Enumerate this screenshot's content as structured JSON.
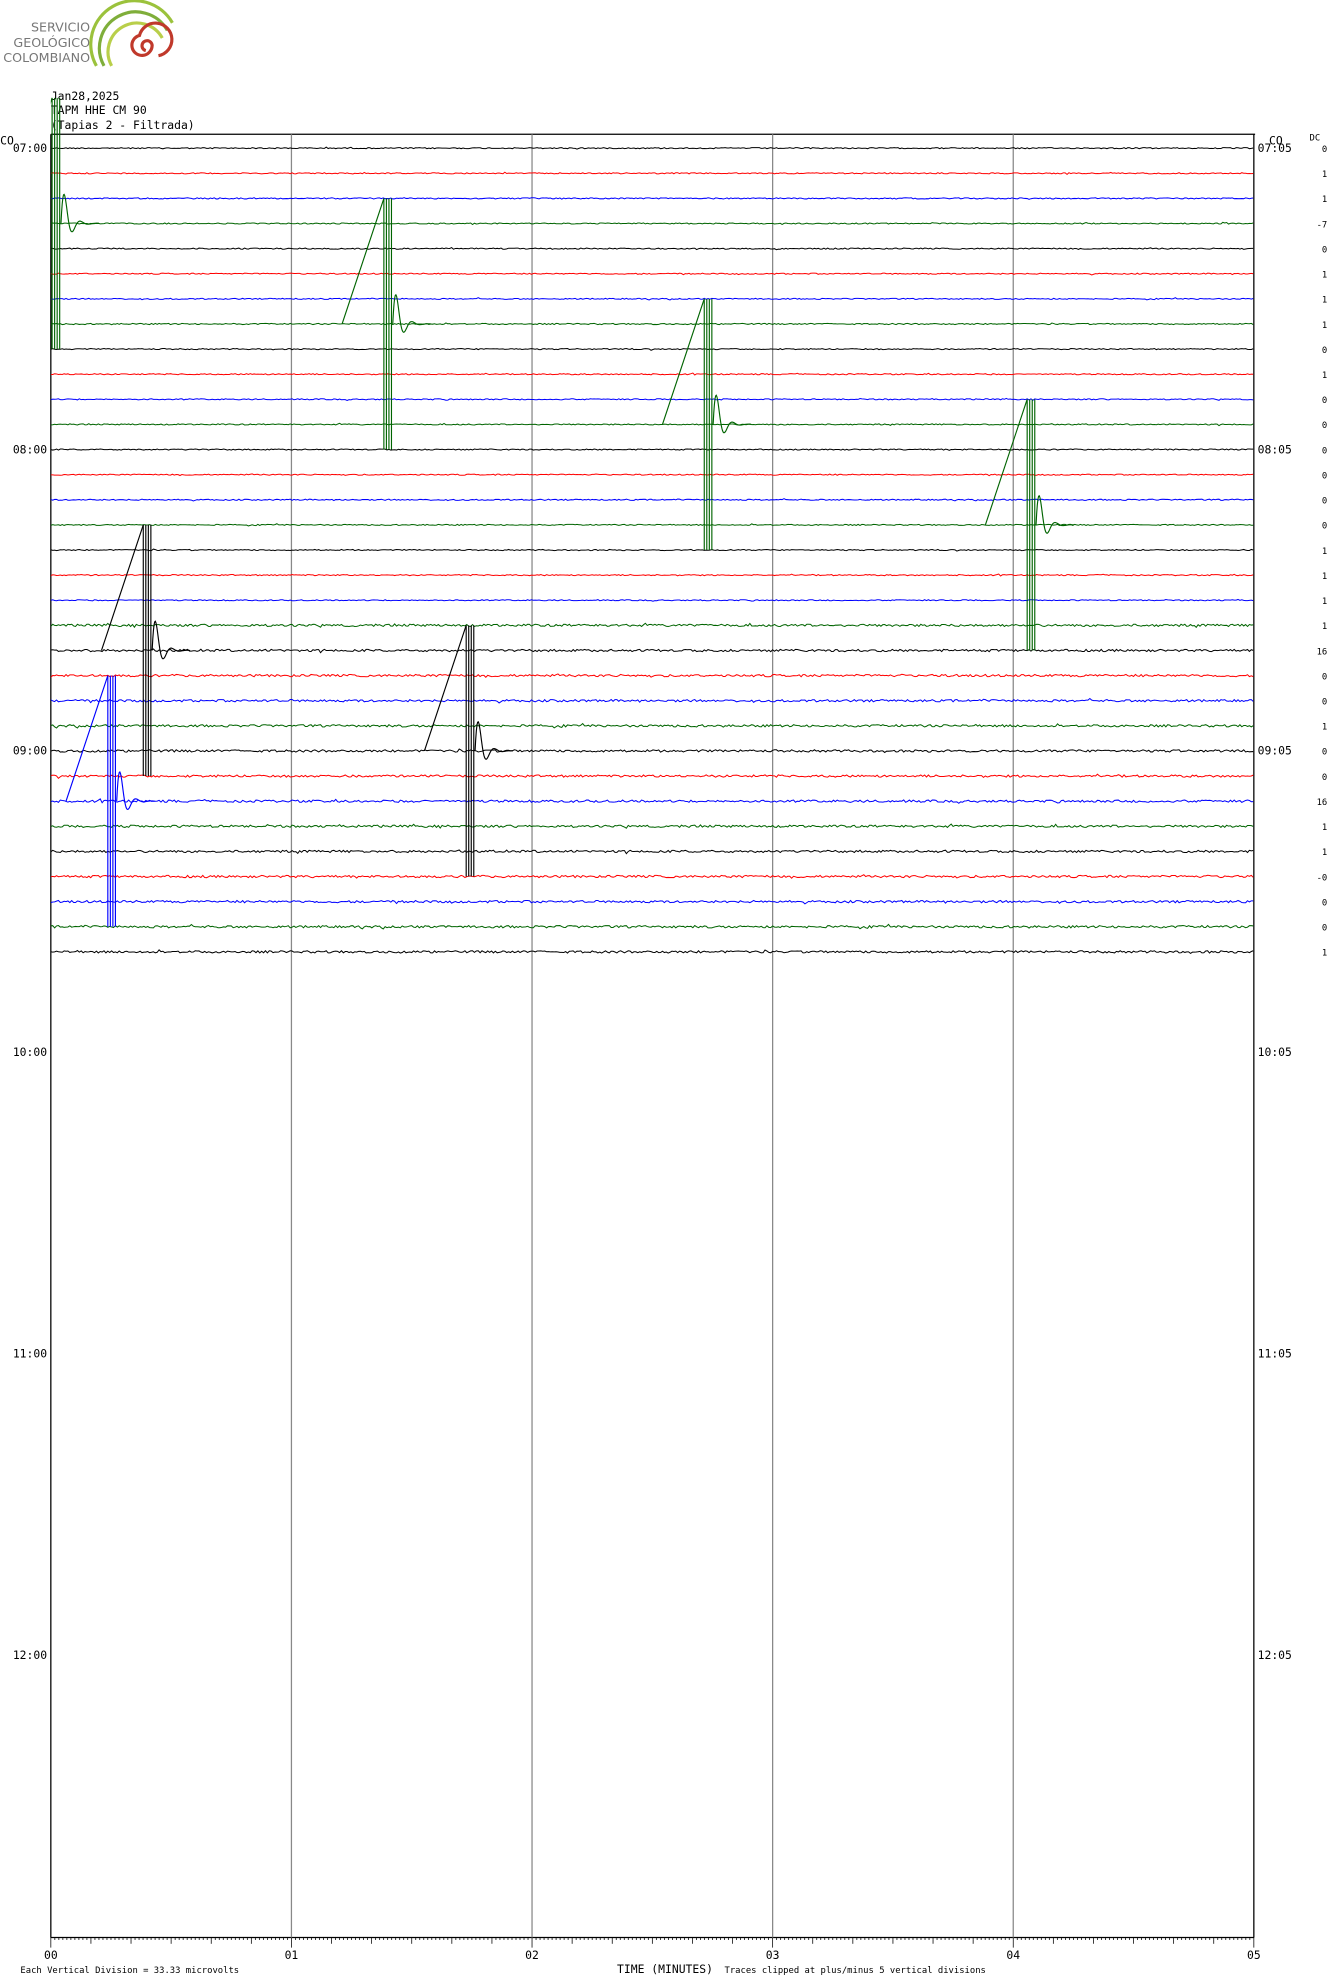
{
  "logo": {
    "lines": [
      "SERVICIO",
      "GEOLÓGICO",
      "COLOMBIANO"
    ]
  },
  "header": {
    "date": "Jan28,2025",
    "station": "TAPM HHE CM 90",
    "description": "(Tapias 2 - Filtrada)"
  },
  "network_left": "CO",
  "network_right": "CO",
  "dc_header": "DC",
  "left_times": [
    "07:00",
    "08:00",
    "09:00",
    "10:00",
    "11:00",
    "12:00"
  ],
  "right_times": [
    "07:05",
    "08:05",
    "09:05",
    "10:05",
    "11:05",
    "12:05"
  ],
  "dc_values": [
    "0",
    "1",
    "1",
    "-7",
    "0",
    "1",
    "1",
    "1",
    "0",
    "1",
    "0",
    "0",
    "0",
    "0",
    "0",
    "0",
    "1",
    "1",
    "1",
    "1",
    "16",
    "0",
    "0",
    "1",
    "0",
    "0",
    "16",
    "1",
    "1",
    "-0",
    "0",
    "0",
    "1"
  ],
  "trace_colors": [
    "#000000",
    "#ff0000",
    "#0000ff",
    "#006400"
  ],
  "x_labels": [
    "00",
    "01",
    "02",
    "03",
    "04",
    "05"
  ],
  "footer": {
    "scale": "Each Vertical Division =  33.33 microvolts",
    "axis_title": "TIME (MINUTES)",
    "clip_note": "Traces clipped at plus/minus 5 vertical divisions"
  }
}
